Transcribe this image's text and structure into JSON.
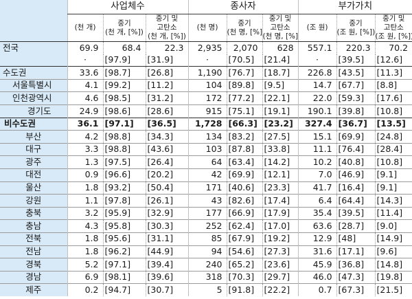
{
  "headers": {
    "groups": [
      "사업체수",
      "종사자",
      "부가가치"
    ],
    "sub": [
      [
        "(천 개)",
        "중기\n(천 개, [%])",
        "중기 및\n고탄소\n(천 개, [%])"
      ],
      [
        "(천 명)",
        "중기\n(천 명, [%])",
        "중기 및\n고탄소\n(천 명, [%])"
      ],
      [
        "(조 원)",
        "중기\n(조 원, [%])",
        "중기 및\n고탄소\n(조 원, [%])"
      ]
    ]
  },
  "rows": [
    {
      "label": "전국",
      "cells": [
        "69.9",
        "68.4",
        "22.3",
        "2,935",
        "2,070",
        "628",
        "557.1",
        "220.3",
        "70.2"
      ]
    },
    {
      "label": "",
      "cells": [
        "·",
        "[97.9]",
        "[31.9]",
        "·",
        "[70.5]",
        "[21.4]",
        "·",
        "[39.5]",
        "[12.6]"
      ]
    },
    {
      "label": "수도권",
      "cells": [
        "33.6",
        "[98.7]",
        "[26.8]",
        "1,190",
        "[76.7]",
        "[18.7]",
        "226.8",
        "[43.5]",
        "[11.3]"
      ]
    },
    {
      "label": "서울특별시",
      "cells": [
        "4.1",
        "[99.2]",
        "[11.2]",
        "104",
        "[89.8]",
        "[9.5]",
        "14.7",
        "[67.7]",
        "[8.8]"
      ]
    },
    {
      "label": "인천광역시",
      "cells": [
        "4.6",
        "[98.5]",
        "[31.2]",
        "172",
        "[77.2]",
        "[22.1]",
        "22.0",
        "[59.3]",
        "[17.6]"
      ]
    },
    {
      "label": "경기도",
      "cells": [
        "24.9",
        "[98.6]",
        "[28.6]",
        "915",
        "[75.1]",
        "[19.1]",
        "190.1",
        "[39.8]",
        "[10.8]"
      ]
    },
    {
      "label": "비수도권",
      "cells": [
        "36.1",
        "[97.1]",
        "[36.5]",
        "1,728",
        "[66.3]",
        "[23.2]",
        "327.4",
        "[36.7]",
        "[13.5]"
      ]
    },
    {
      "label": "부산",
      "cells": [
        "4.2",
        "[98.8]",
        "[34.3]",
        "134",
        "[83.2]",
        "[27.5]",
        "15.1",
        "[69.9]",
        "[24.8]"
      ]
    },
    {
      "label": "대구",
      "cells": [
        "3.3",
        "[98.8]",
        "[43.6]",
        "103",
        "[87.8]",
        "[33.8]",
        "11.1",
        "[76.4]",
        "[28.4]"
      ]
    },
    {
      "label": "광주",
      "cells": [
        "1.3",
        "[97.5]",
        "[26.4]",
        "64",
        "[63.4]",
        "[14.2]",
        "10.2",
        "[40.8]",
        "[10.8]"
      ]
    },
    {
      "label": "대전",
      "cells": [
        "0.9",
        "[96.6]",
        "[20.2]",
        "42",
        "[69.9]",
        "[12.1]",
        "7.0",
        "[46.9]",
        "[9.1]"
      ]
    },
    {
      "label": "울산",
      "cells": [
        "1.8",
        "[93.2]",
        "[50.4]",
        "171",
        "[40.6]",
        "[23.3]",
        "41.7",
        "[16.4]",
        "[9.1]"
      ]
    },
    {
      "label": "강원",
      "cells": [
        "1.1",
        "[97.8]",
        "[26.1]",
        "43",
        "[82.6]",
        "[17.4]",
        "6.4",
        "[64.4]",
        "[14.3]"
      ]
    },
    {
      "label": "충북",
      "cells": [
        "3.2",
        "[95.9]",
        "[32.9]",
        "177",
        "[66.9]",
        "[17.9]",
        "35.4",
        "[39.5]",
        "[11.4]"
      ]
    },
    {
      "label": "충남",
      "cells": [
        "4.3",
        "[95.8]",
        "[30.3]",
        "252",
        "[62.4]",
        "[17.0]",
        "63.6",
        "[28.7]",
        "[9.0]"
      ]
    },
    {
      "label": "전북",
      "cells": [
        "1.8",
        "[95.6]",
        "[31.1]",
        "85",
        "[67.9]",
        "[19.2]",
        "12.9",
        "[48]",
        "[14.9]"
      ]
    },
    {
      "label": "전남",
      "cells": [
        "1.8",
        "[96.2]",
        "[44.9]",
        "94",
        "[54.6]",
        "[27.3]",
        "31.6",
        "[17.1]",
        "[9.6]"
      ]
    },
    {
      "label": "경북",
      "cells": [
        "5.2",
        "[97.1]",
        "[39.4]",
        "240",
        "[65.2]",
        "[23.6]",
        "45.9",
        "[36.8]",
        "[14.8]"
      ]
    },
    {
      "label": "경남",
      "cells": [
        "6.9",
        "[98.1]",
        "[39.6]",
        "318",
        "[70.3]",
        "[29.7]",
        "46.0",
        "[47.3]",
        "[19.8]"
      ]
    },
    {
      "label": "제주",
      "cells": [
        "0.2",
        "[94.7]",
        "[30.7]",
        "5",
        "[91.8]",
        "[22.2]",
        "0.7",
        "[67.3]",
        "[21.5]"
      ]
    }
  ]
}
